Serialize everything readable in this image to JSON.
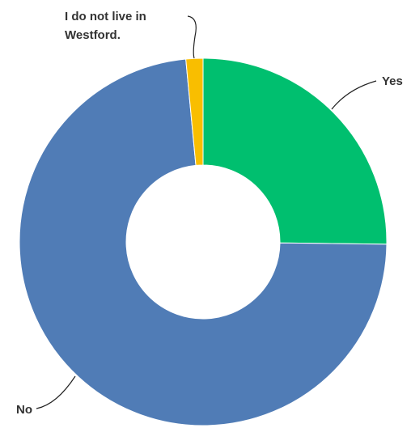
{
  "chart_data": {
    "type": "pie",
    "variant": "donut",
    "title": "",
    "slices": [
      {
        "label": "Yes",
        "value": 25.2,
        "color": "#00BF6F"
      },
      {
        "label": "No",
        "value": 73.3,
        "color": "#507CB6"
      },
      {
        "label": "I do not live in Westford.",
        "label_lines": [
          "I do not live in",
          "Westford."
        ],
        "value": 1.5,
        "color": "#F9BE00"
      }
    ],
    "legend": "none"
  }
}
